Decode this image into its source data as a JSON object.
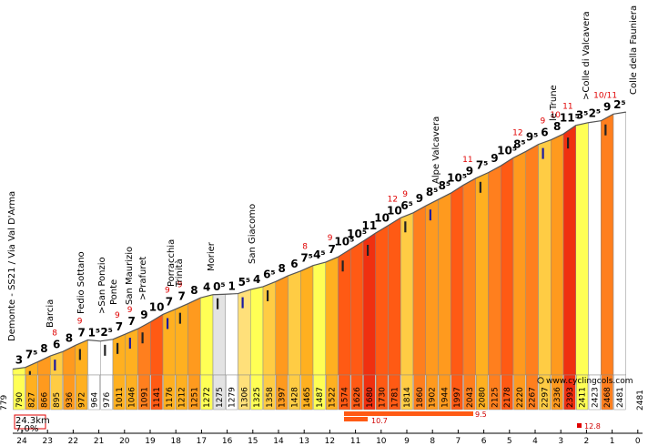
{
  "chart_data": {
    "type": "area",
    "title": "Colle della Fauniera",
    "distance_label": "24.3km",
    "avg_gradient_label": "7.0%",
    "website": "www.cyclingcols.com",
    "start_altitude": 779,
    "end_altitude": 2481,
    "km_ticks": [
      "24",
      "23",
      "22",
      "21",
      "20",
      "19",
      "18",
      "17",
      "16",
      "15",
      "14",
      "13",
      "12",
      "11",
      "10",
      "9",
      "8",
      "7",
      "6",
      "5",
      "4",
      "3",
      "2",
      "1",
      "0"
    ],
    "segments": [
      {
        "alt": "790",
        "grad": "3",
        "max": ""
      },
      {
        "alt": "827",
        "grad": "7⁵",
        "max": ""
      },
      {
        "alt": "866",
        "grad": "8",
        "max": ""
      },
      {
        "alt": "895",
        "grad": "6",
        "max": "8"
      },
      {
        "alt": "936",
        "grad": "8",
        "max": ""
      },
      {
        "alt": "972",
        "grad": "7",
        "max": "9"
      },
      {
        "alt": "964",
        "grad": "1⁵",
        "max": ""
      },
      {
        "alt": "976",
        "grad": "2⁵",
        "max": ""
      },
      {
        "alt": "1011",
        "grad": "7",
        "max": "9"
      },
      {
        "alt": "1046",
        "grad": "7",
        "max": "9"
      },
      {
        "alt": "1091",
        "grad": "9",
        "max": ""
      },
      {
        "alt": "1141",
        "grad": "10",
        "max": ""
      },
      {
        "alt": "1176",
        "grad": "7",
        "max": "9"
      },
      {
        "alt": "1212",
        "grad": "7",
        "max": "9"
      },
      {
        "alt": "1251",
        "grad": "8",
        "max": ""
      },
      {
        "alt": "1272",
        "grad": "4",
        "max": ""
      },
      {
        "alt": "1275",
        "grad": "0⁵",
        "max": ""
      },
      {
        "alt": "1279",
        "grad": "1",
        "max": ""
      },
      {
        "alt": "1306",
        "grad": "5⁵",
        "max": ""
      },
      {
        "alt": "1325",
        "grad": "4",
        "max": ""
      },
      {
        "alt": "1358",
        "grad": "6⁵",
        "max": ""
      },
      {
        "alt": "1397",
        "grad": "8",
        "max": ""
      },
      {
        "alt": "1428",
        "grad": "6",
        "max": ""
      },
      {
        "alt": "1465",
        "grad": "7⁵",
        "max": "8"
      },
      {
        "alt": "1487",
        "grad": "4⁵",
        "max": ""
      },
      {
        "alt": "1522",
        "grad": "7",
        "max": "9"
      },
      {
        "alt": "1574",
        "grad": "10⁵",
        "max": ""
      },
      {
        "alt": "1626",
        "grad": "10⁵",
        "max": ""
      },
      {
        "alt": "1680",
        "grad": "11",
        "max": ""
      },
      {
        "alt": "1730",
        "grad": "10",
        "max": ""
      },
      {
        "alt": "1781",
        "grad": "10",
        "max": "12"
      },
      {
        "alt": "1814",
        "grad": "6⁵",
        "max": "9"
      },
      {
        "alt": "1860",
        "grad": "9",
        "max": ""
      },
      {
        "alt": "1902",
        "grad": "8⁵",
        "max": ""
      },
      {
        "alt": "1944",
        "grad": "8⁵",
        "max": ""
      },
      {
        "alt": "1997",
        "grad": "10⁵",
        "max": ""
      },
      {
        "alt": "2043",
        "grad": "9",
        "max": "11"
      },
      {
        "alt": "2080",
        "grad": "7⁵",
        "max": ""
      },
      {
        "alt": "2125",
        "grad": "9",
        "max": ""
      },
      {
        "alt": "2178",
        "grad": "10⁵",
        "max": ""
      },
      {
        "alt": "2220",
        "grad": "8⁵",
        "max": "12"
      },
      {
        "alt": "2267",
        "grad": "9⁵",
        "max": ""
      },
      {
        "alt": "2297",
        "grad": "6",
        "max": "9"
      },
      {
        "alt": "2336",
        "grad": "8",
        "max": "10"
      },
      {
        "alt": "2393",
        "grad": "11⁵",
        "max": "11"
      },
      {
        "alt": "2411",
        "grad": "3⁵",
        "max": ""
      },
      {
        "alt": "2423",
        "grad": "2⁵",
        "max": ""
      },
      {
        "alt": "2468",
        "grad": "9",
        "max": "10/11"
      },
      {
        "alt": "2481",
        "grad": "2⁵",
        "max": ""
      }
    ],
    "landmarks": [
      "Demonte - SS21 / Via Val D'Arma",
      "Barcia",
      "Fedio Sottano",
      ">San Ponzio",
      "Ponte",
      "San Maurizio",
      ">Prafuret",
      "Porracchia",
      "Trinità",
      "Morier",
      "San Giacomo",
      "Alpe Valcavera",
      "le Trune",
      ">Colle di Valcavera",
      "Colle della Fauniera"
    ],
    "steepest_stretches": [
      {
        "gradient": "9.5",
        "unit": "km"
      },
      {
        "gradient": "10.7",
        "unit": "km"
      },
      {
        "gradient": "12.8",
        "unit": "km"
      }
    ]
  }
}
